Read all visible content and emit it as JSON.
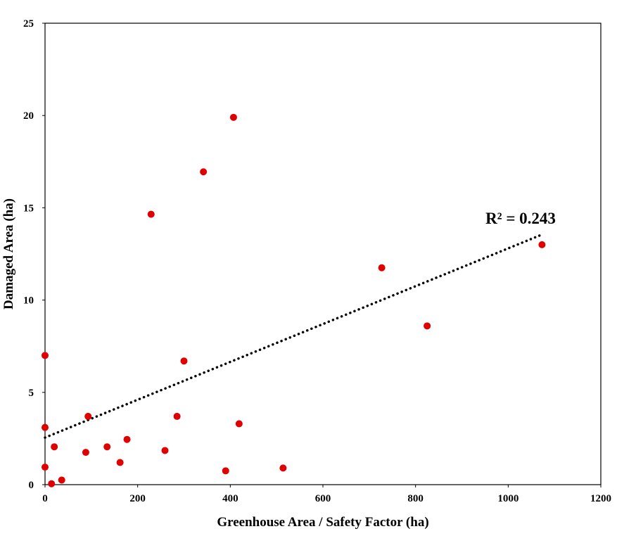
{
  "chart_data": {
    "type": "scatter",
    "xlabel": "Greenhouse Area / Safety Factor (ha)",
    "ylabel": "Damaged Area (ha)",
    "xlim": [
      0,
      1200
    ],
    "ylim": [
      0,
      25
    ],
    "xticks": [
      0,
      200,
      400,
      600,
      800,
      1000,
      1200
    ],
    "yticks": [
      0,
      5,
      10,
      15,
      20,
      25
    ],
    "grid": false,
    "legend": "none",
    "series": [
      {
        "color": "#e00000",
        "points": [
          {
            "x": 0,
            "y": 7.0
          },
          {
            "x": 0,
            "y": 3.1
          },
          {
            "x": 0,
            "y": 0.95
          },
          {
            "x": 14,
            "y": 0.05
          },
          {
            "x": 20,
            "y": 2.05
          },
          {
            "x": 36,
            "y": 0.25
          },
          {
            "x": 88,
            "y": 1.75
          },
          {
            "x": 93,
            "y": 3.7
          },
          {
            "x": 134,
            "y": 2.05
          },
          {
            "x": 162,
            "y": 1.2
          },
          {
            "x": 177,
            "y": 2.45
          },
          {
            "x": 229,
            "y": 14.65
          },
          {
            "x": 259,
            "y": 1.85
          },
          {
            "x": 285,
            "y": 3.7
          },
          {
            "x": 300,
            "y": 6.7
          },
          {
            "x": 342,
            "y": 16.95
          },
          {
            "x": 390,
            "y": 0.75
          },
          {
            "x": 407,
            "y": 19.9
          },
          {
            "x": 419,
            "y": 3.3
          },
          {
            "x": 514,
            "y": 0.9
          },
          {
            "x": 727,
            "y": 11.75
          },
          {
            "x": 825,
            "y": 8.6
          },
          {
            "x": 1073,
            "y": 13.0
          }
        ]
      }
    ],
    "trendline": {
      "style": "dotted",
      "color": "#000000",
      "x": [
        0,
        1073
      ],
      "y": [
        2.55,
        13.55
      ],
      "label": "R² = 0.243"
    }
  }
}
